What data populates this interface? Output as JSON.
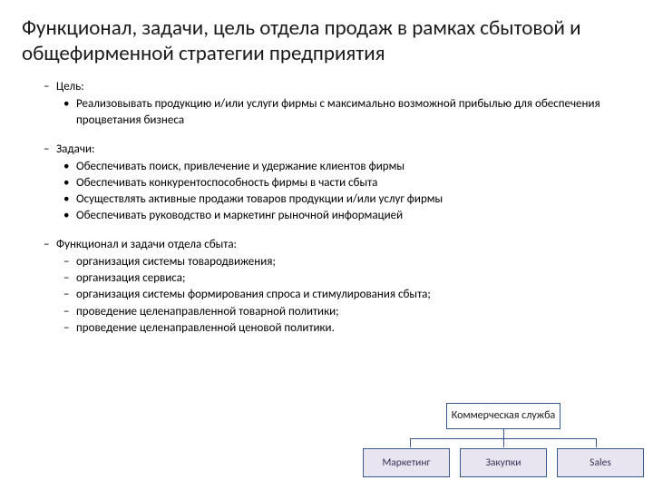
{
  "title": "Функционал, задачи, цель отдела продаж в рамках сбытовой и общефирменной стратегии предприятия",
  "sections": [
    {
      "header": "Цель:",
      "style": "bullet",
      "items": [
        "Реализовывать продукцию и/или услуги фирмы с максимально возможной прибылью для обеспечения процветания бизнеса"
      ]
    },
    {
      "header": "Задачи:",
      "style": "bullet",
      "items": [
        "Обеспечивать поиск, привлечение и удержание клиентов фирмы",
        "Обеспечивать конкурентоспособность фирмы в части сбыта",
        "Осуществлять активные продажи товаров продукции и/или услуг фирмы",
        "Обеспечивать руководство и маркетинг рыночной информацией"
      ]
    },
    {
      "header": "Функционал и задачи отдела сбыта:",
      "style": "dash",
      "items": [
        "организация системы товародвижения;",
        "организация сервиса;",
        "организация системы формирования спроса и стимулирования сбыта;",
        "проведение целенаправленной товарной политики;",
        "проведение целенаправленной ценовой политики."
      ]
    }
  ],
  "org_chart": {
    "top": "Коммерческая служба",
    "children": [
      "Маркетинг",
      "Закупки",
      "Sales"
    ],
    "border_color": "#3a5a8a",
    "top_bg": "#ffffff",
    "child_bg": "#e8e4f0",
    "child_text_color": "#3a3258"
  },
  "colors": {
    "background": "#ffffff",
    "text": "#000000"
  },
  "typography": {
    "title_fontsize": 23,
    "body_fontsize": 13,
    "org_fontsize": 12
  }
}
